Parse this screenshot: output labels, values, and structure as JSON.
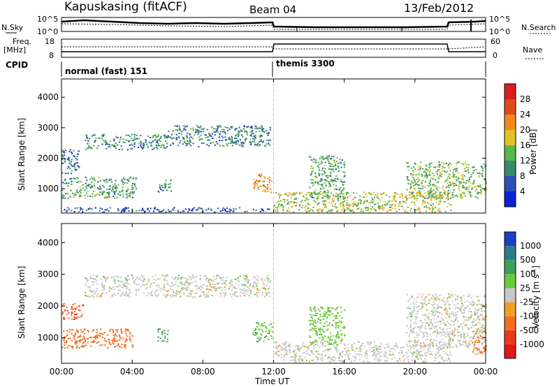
{
  "header": {
    "station": "Kapuskasing (fitACF)",
    "beam": "Beam 04",
    "date": "13/Feb/2012"
  },
  "top_panel": {
    "left_label": "N.Sky",
    "right_label": "N.Search",
    "left_ticks": [
      "10^5",
      "10^0"
    ],
    "right_ticks": [
      "10^5",
      "10^0"
    ]
  },
  "freq_panel": {
    "left_label_1": "Freq.",
    "left_label_2": "[MHz]",
    "right_label": "Nave",
    "left_ticks": [
      "18",
      "8"
    ],
    "right_ticks": [
      "60",
      "0"
    ]
  },
  "cpid": {
    "label": "CPID",
    "segments": [
      {
        "start_ut": 0,
        "end_ut": 12,
        "name": "normal (fast) 151"
      },
      {
        "start_ut": 12,
        "end_ut": 24,
        "name": "themis 3300"
      }
    ]
  },
  "x_axis": {
    "label": "Time UT",
    "ticks": [
      "00:00",
      "04:00",
      "08:00",
      "12:00",
      "16:00",
      "20:00",
      "00:00"
    ],
    "range_hours": [
      0,
      24
    ]
  },
  "y_axis": {
    "label": "Slant Range [km]",
    "ticks": [
      "1000",
      "2000",
      "3000",
      "4000"
    ],
    "range_km": [
      200,
      4600
    ]
  },
  "power_bar": {
    "label": "Power [dB]",
    "ticks": [
      "4",
      "8",
      "12",
      "16",
      "20",
      "24",
      "28"
    ],
    "colors": [
      "#0b22d6",
      "#2f4fb8",
      "#3a8a6a",
      "#58b84a",
      "#e5c224",
      "#f08a1e",
      "#e04b1c",
      "#d91e1e"
    ]
  },
  "velocity_bar": {
    "label": "Velocity [m s",
    "label_sup": "-1",
    "label_end": "]",
    "ticks": [
      "1000",
      "500",
      "100",
      "25",
      "-25",
      "-100",
      "-500",
      "-1000"
    ],
    "colors": [
      "#1b3fc4",
      "#2e7a8a",
      "#3aa05a",
      "#6cc83c",
      "#c8c8c8",
      "#f0a020",
      "#f07020",
      "#e83a1a",
      "#e01818"
    ]
  },
  "chart_data": [
    {
      "type": "heatmap",
      "title": "",
      "xlabel": "Time UT",
      "ylabel": "Slant Range [km]",
      "xlim": [
        0,
        24
      ],
      "ylim": [
        200,
        4600
      ],
      "colorbar_label": "Power [dB]",
      "regions": [
        {
          "t0": 0.0,
          "t1": 4.2,
          "r0": 700,
          "r1": 1400,
          "power": 12
        },
        {
          "t0": 0.0,
          "t1": 1.0,
          "r0": 1500,
          "r1": 2300,
          "power": 8
        },
        {
          "t0": 1.3,
          "t1": 6.0,
          "r0": 2300,
          "r1": 2800,
          "power": 10
        },
        {
          "t0": 6.0,
          "t1": 11.8,
          "r0": 2400,
          "r1": 3100,
          "power": 9
        },
        {
          "t0": 5.4,
          "t1": 6.2,
          "r0": 900,
          "r1": 1300,
          "power": 10
        },
        {
          "t0": 10.8,
          "t1": 11.9,
          "r0": 900,
          "r1": 1500,
          "power": 22
        },
        {
          "t0": 12.0,
          "t1": 22.0,
          "r0": 250,
          "r1": 900,
          "power": 16
        },
        {
          "t0": 14.0,
          "t1": 16.0,
          "r0": 700,
          "r1": 2100,
          "power": 12
        },
        {
          "t0": 19.5,
          "t1": 24.0,
          "r0": 700,
          "r1": 1900,
          "power": 14
        },
        {
          "t0": 0.0,
          "t1": 12.0,
          "r0": 250,
          "r1": 400,
          "power": 6
        }
      ]
    },
    {
      "type": "heatmap",
      "title": "",
      "xlabel": "Time UT",
      "ylabel": "Slant Range [km]",
      "xlim": [
        0,
        24
      ],
      "ylim": [
        200,
        4600
      ],
      "colorbar_label": "Velocity [m s-1]",
      "regions": [
        {
          "t0": 0.0,
          "t1": 4.0,
          "r0": 700,
          "r1": 1300,
          "velocity": -300
        },
        {
          "t0": 0.0,
          "t1": 1.2,
          "r0": 1600,
          "r1": 2100,
          "velocity": -500
        },
        {
          "t0": 1.3,
          "t1": 11.8,
          "r0": 2300,
          "r1": 3000,
          "velocity": 0
        },
        {
          "t0": 5.4,
          "t1": 6.0,
          "r0": 900,
          "r1": 1300,
          "velocity": 300
        },
        {
          "t0": 10.8,
          "t1": 11.9,
          "r0": 900,
          "r1": 1500,
          "velocity": 80
        },
        {
          "t0": 12.0,
          "t1": 22.0,
          "r0": 250,
          "r1": 900,
          "velocity": 0
        },
        {
          "t0": 14.0,
          "t1": 16.0,
          "r0": 800,
          "r1": 2000,
          "velocity": 60
        },
        {
          "t0": 19.5,
          "t1": 24.0,
          "r0": 700,
          "r1": 2400,
          "velocity": 0
        },
        {
          "t0": 23.2,
          "t1": 24.0,
          "r0": 500,
          "r1": 1300,
          "velocity": -150
        }
      ]
    }
  ]
}
